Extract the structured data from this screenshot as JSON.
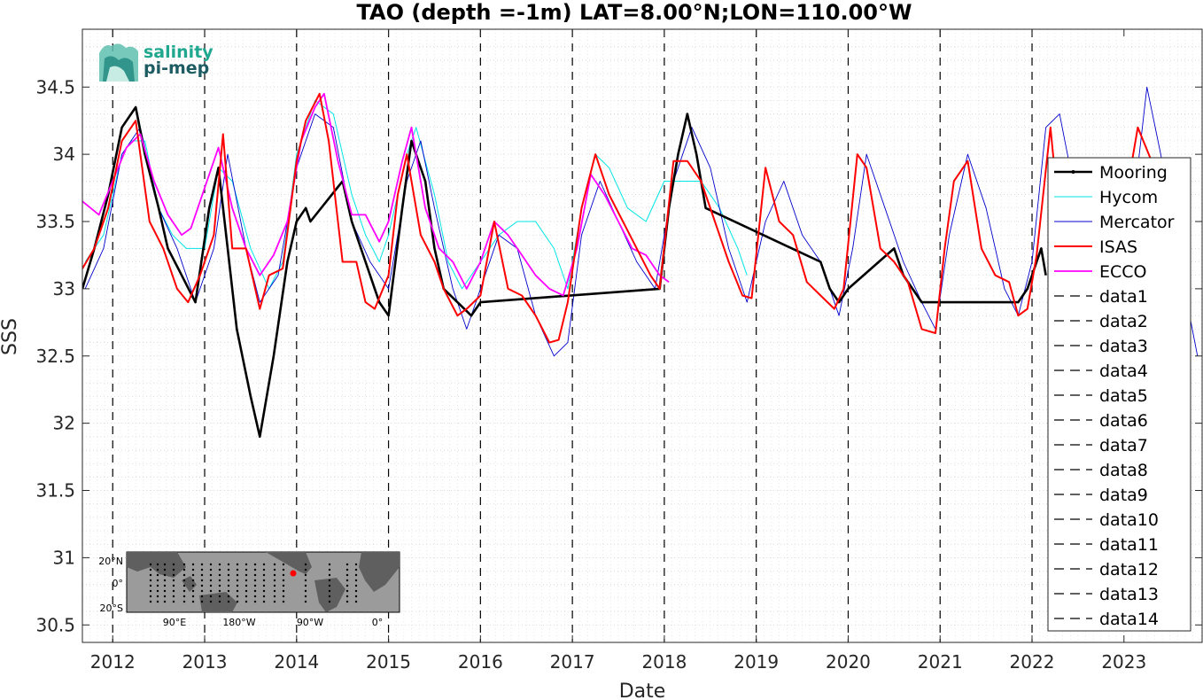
{
  "chart_data": {
    "type": "line",
    "title": "TAO (depth =-1m) LAT=8.00°N;LON=110.00°W",
    "xlabel": "Date",
    "ylabel": "SSS",
    "xlim": [
      2011.67,
      2023.85
    ],
    "ylim": [
      30.37,
      34.93
    ],
    "x_ticks": [
      2012,
      2013,
      2014,
      2015,
      2016,
      2017,
      2018,
      2019,
      2020,
      2021,
      2022,
      2023
    ],
    "x_tick_labels": [
      "2012",
      "2013",
      "2014",
      "2015",
      "2016",
      "2017",
      "2018",
      "2019",
      "2020",
      "2021",
      "2022",
      "2023"
    ],
    "y_ticks": [
      30.5,
      31,
      31.5,
      32,
      32.5,
      33,
      33.5,
      34,
      34.5
    ],
    "y_tick_labels": [
      "30.5",
      "31",
      "31.5",
      "32",
      "32.5",
      "33",
      "33.5",
      "34",
      "34.5"
    ],
    "grid": "on (dotted minor grid)",
    "legend_position": "right",
    "vertical_dashed_lines_x": [
      2012,
      2013,
      2014,
      2015,
      2016,
      2017,
      2018,
      2019,
      2020,
      2021,
      2022
    ],
    "series": [
      {
        "name": "Mooring",
        "color": "#000000",
        "x": [
          2011.67,
          2011.8,
          2011.95,
          2012.1,
          2012.25,
          2012.35,
          2012.5,
          2012.6,
          2012.75,
          2012.9,
          2013.05,
          2013.15,
          2013.25,
          2013.35,
          2013.5,
          2013.6,
          2013.75,
          2013.9,
          2014.0,
          2014.1,
          2014.15,
          2014.5,
          2014.6,
          2014.75,
          2014.9,
          2015.0,
          2015.15,
          2015.25,
          2015.4,
          2015.5,
          2015.6,
          2015.75,
          2015.9,
          2016.0,
          2017.95,
          2018.05,
          2018.15,
          2018.25,
          2018.35,
          2018.45,
          2019.7,
          2019.8,
          2019.9,
          2020.0,
          2020.5,
          2020.6,
          2020.7,
          2020.8,
          2021.85,
          2021.95,
          2022.0,
          2022.05,
          2022.1,
          2022.15
        ],
        "y": [
          33.0,
          33.3,
          33.7,
          34.2,
          34.35,
          34.0,
          33.6,
          33.3,
          33.1,
          32.9,
          33.6,
          33.9,
          33.3,
          32.7,
          32.2,
          31.9,
          32.5,
          33.2,
          33.5,
          33.6,
          33.5,
          33.8,
          33.5,
          33.2,
          32.9,
          32.8,
          33.6,
          34.1,
          33.8,
          33.3,
          33.0,
          32.9,
          32.8,
          32.9,
          33.0,
          33.6,
          34.0,
          34.3,
          34.0,
          33.6,
          33.2,
          33.0,
          32.9,
          33.0,
          33.3,
          33.1,
          33.0,
          32.9,
          32.9,
          33.0,
          33.1,
          33.2,
          33.3,
          33.1
        ]
      },
      {
        "name": "Hycom",
        "color": "#00e5e5",
        "x": [
          2011.7,
          2011.9,
          2012.1,
          2012.2,
          2012.35,
          2012.5,
          2012.65,
          2012.8,
          2013.0,
          2013.15,
          2013.3,
          2013.5,
          2013.7,
          2013.85,
          2014.0,
          2014.2,
          2014.4,
          2014.6,
          2014.75,
          2014.9,
          2015.0,
          2015.2,
          2015.3,
          2015.5,
          2015.65,
          2015.8,
          2016.0,
          2016.2,
          2016.4,
          2016.6,
          2016.8,
          2016.95,
          2017.1,
          2017.25,
          2017.4,
          2017.6,
          2017.8,
          2018.0,
          2018.2,
          2018.4,
          2018.6,
          2018.8,
          2018.9
        ],
        "y": [
          33.2,
          33.4,
          34.0,
          34.1,
          34.1,
          33.6,
          33.4,
          33.3,
          33.3,
          33.9,
          33.8,
          33.3,
          33.0,
          33.2,
          34.0,
          34.4,
          34.3,
          33.7,
          33.4,
          33.2,
          33.4,
          34.0,
          34.2,
          33.7,
          33.2,
          33.0,
          33.2,
          33.4,
          33.5,
          33.5,
          33.3,
          33.0,
          33.6,
          34.0,
          33.9,
          33.6,
          33.5,
          33.8,
          33.8,
          33.8,
          33.6,
          33.3,
          33.1
        ]
      },
      {
        "name": "Mercator",
        "color": "#0000cc",
        "x": [
          2011.7,
          2011.9,
          2012.1,
          2012.3,
          2012.5,
          2012.7,
          2012.9,
          2013.1,
          2013.25,
          2013.45,
          2013.6,
          2013.8,
          2014.0,
          2014.2,
          2014.4,
          2014.6,
          2014.8,
          2015.0,
          2015.2,
          2015.35,
          2015.5,
          2015.7,
          2015.85,
          2016.0,
          2016.2,
          2016.4,
          2016.6,
          2016.8,
          2016.95,
          2017.1,
          2017.3,
          2017.5,
          2017.7,
          2017.9,
          2018.1,
          2018.3,
          2018.5,
          2018.7,
          2018.9,
          2019.1,
          2019.3,
          2019.5,
          2019.7,
          2019.9,
          2020.05,
          2020.2,
          2020.4,
          2020.6,
          2020.8,
          2020.95,
          2021.1,
          2021.3,
          2021.5,
          2021.7,
          2021.85,
          2022.0,
          2022.15,
          2022.3,
          2022.5,
          2022.7,
          2022.9,
          2023.1,
          2023.25,
          2023.4,
          2023.6,
          2023.8
        ],
        "y": [
          33.0,
          33.3,
          34.0,
          34.2,
          33.6,
          33.3,
          32.9,
          33.3,
          34.0,
          33.3,
          32.9,
          33.1,
          33.9,
          34.3,
          34.2,
          33.5,
          33.2,
          33.0,
          33.8,
          34.1,
          33.6,
          33.0,
          32.7,
          33.0,
          33.4,
          33.3,
          32.8,
          32.5,
          32.6,
          33.4,
          33.8,
          33.5,
          33.2,
          33.0,
          33.8,
          34.2,
          33.9,
          33.3,
          32.9,
          33.5,
          33.8,
          33.4,
          33.2,
          32.8,
          33.3,
          34.0,
          33.6,
          33.2,
          32.9,
          32.7,
          33.4,
          34.0,
          33.6,
          33.0,
          32.8,
          33.2,
          34.2,
          34.3,
          33.6,
          33.0,
          32.7,
          33.6,
          34.5,
          34.0,
          33.2,
          32.5
        ]
      },
      {
        "name": "ISAS",
        "color": "#ff0000",
        "x": [
          2011.67,
          2011.8,
          2011.95,
          2012.1,
          2012.25,
          2012.4,
          2012.55,
          2012.7,
          2012.82,
          2012.95,
          2013.1,
          2013.2,
          2013.3,
          2013.45,
          2013.6,
          2013.7,
          2013.85,
          2014.0,
          2014.1,
          2014.25,
          2014.35,
          2014.5,
          2014.65,
          2014.75,
          2014.85,
          2015.0,
          2015.1,
          2015.2,
          2015.35,
          2015.5,
          2015.6,
          2015.75,
          2015.85,
          2016.0,
          2016.15,
          2016.3,
          2016.45,
          2016.6,
          2016.75,
          2016.85,
          2016.95,
          2017.1,
          2017.25,
          2017.4,
          2017.55,
          2017.7,
          2017.85,
          2017.95,
          2018.1,
          2018.25,
          2018.4,
          2018.55,
          2018.7,
          2018.85,
          2018.95,
          2019.1,
          2019.25,
          2019.4,
          2019.55,
          2019.7,
          2019.85,
          2019.95,
          2020.1,
          2020.2,
          2020.35,
          2020.5,
          2020.65,
          2020.8,
          2020.95,
          2021.05,
          2021.15,
          2021.3,
          2021.45,
          2021.6,
          2021.75,
          2021.85,
          2021.95,
          2022.05,
          2022.2,
          2022.3,
          2022.45,
          2022.6,
          2022.75,
          2022.9,
          2023.0,
          2023.15,
          2023.3,
          2023.45
        ],
        "y": [
          33.15,
          33.3,
          33.6,
          34.1,
          34.25,
          33.5,
          33.3,
          33.0,
          32.9,
          33.1,
          33.4,
          34.15,
          33.3,
          33.3,
          32.85,
          33.1,
          33.15,
          33.95,
          34.25,
          34.45,
          34.1,
          33.2,
          33.2,
          32.9,
          32.85,
          33.1,
          33.7,
          34.0,
          33.4,
          33.2,
          33.0,
          32.8,
          32.85,
          32.95,
          33.5,
          33.0,
          32.95,
          32.8,
          32.6,
          32.62,
          32.9,
          33.6,
          34.0,
          33.7,
          33.5,
          33.3,
          33.1,
          33.0,
          33.95,
          33.95,
          33.8,
          33.5,
          33.2,
          32.95,
          32.93,
          33.9,
          33.5,
          33.4,
          33.05,
          32.95,
          32.85,
          33.0,
          34.0,
          33.9,
          33.3,
          33.2,
          33.05,
          32.7,
          32.67,
          33.3,
          33.8,
          33.95,
          33.3,
          33.1,
          33.05,
          32.8,
          32.85,
          33.25,
          34.2,
          33.5,
          33.15,
          32.95,
          32.9,
          33.2,
          33.6,
          34.2,
          33.95,
          33.5
        ]
      },
      {
        "name": "ECCO",
        "color": "#ff00ff",
        "x": [
          2011.67,
          2011.85,
          2012.0,
          2012.15,
          2012.3,
          2012.45,
          2012.6,
          2012.75,
          2012.85,
          2013.0,
          2013.15,
          2013.3,
          2013.45,
          2013.6,
          2013.75,
          2013.9,
          2014.05,
          2014.2,
          2014.3,
          2014.45,
          2014.6,
          2014.75,
          2014.9,
          2015.0,
          2015.15,
          2015.25,
          2015.4,
          2015.55,
          2015.7,
          2015.85,
          2016.0,
          2016.15,
          2016.3,
          2016.45,
          2016.6,
          2016.75,
          2016.9,
          2017.05,
          2017.2,
          2017.35,
          2017.5,
          2017.65,
          2017.8,
          2017.95,
          2018.05
        ],
        "y": [
          33.65,
          33.55,
          33.8,
          34.05,
          34.15,
          33.8,
          33.55,
          33.4,
          33.45,
          33.75,
          34.05,
          33.6,
          33.3,
          33.1,
          33.25,
          33.5,
          34.1,
          34.35,
          34.45,
          33.95,
          33.55,
          33.55,
          33.35,
          33.5,
          33.95,
          34.2,
          33.6,
          33.3,
          33.2,
          33.0,
          33.2,
          33.5,
          33.4,
          33.25,
          33.1,
          33.0,
          32.95,
          33.3,
          33.85,
          33.7,
          33.5,
          33.3,
          33.25,
          33.1,
          33.05
        ]
      },
      {
        "name": "data1",
        "color": "#000000",
        "style": "dashed",
        "x": [
          2012,
          2012
        ],
        "y": [
          30.37,
          34.93
        ]
      },
      {
        "name": "data2",
        "color": "#000000",
        "style": "dashed",
        "x": [
          2013,
          2013
        ],
        "y": [
          30.37,
          34.93
        ]
      },
      {
        "name": "data3",
        "color": "#000000",
        "style": "dashed",
        "x": [
          2014,
          2014
        ],
        "y": [
          30.37,
          34.93
        ]
      },
      {
        "name": "data4",
        "color": "#000000",
        "style": "dashed",
        "x": [
          2015,
          2015
        ],
        "y": [
          30.37,
          34.93
        ]
      },
      {
        "name": "data5",
        "color": "#000000",
        "style": "dashed",
        "x": [
          2016,
          2016
        ],
        "y": [
          30.37,
          34.93
        ]
      },
      {
        "name": "data6",
        "color": "#000000",
        "style": "dashed",
        "x": [
          2017,
          2017
        ],
        "y": [
          30.37,
          34.93
        ]
      },
      {
        "name": "data7",
        "color": "#000000",
        "style": "dashed",
        "x": [
          2018,
          2018
        ],
        "y": [
          30.37,
          34.93
        ]
      },
      {
        "name": "data8",
        "color": "#000000",
        "style": "dashed",
        "x": [
          2019,
          2019
        ],
        "y": [
          30.37,
          34.93
        ]
      },
      {
        "name": "data9",
        "color": "#000000",
        "style": "dashed",
        "x": [
          2020,
          2020
        ],
        "y": [
          30.37,
          34.93
        ]
      },
      {
        "name": "data10",
        "color": "#000000",
        "style": "dashed",
        "x": [
          2021,
          2021
        ],
        "y": [
          30.37,
          34.93
        ]
      },
      {
        "name": "data11",
        "color": "#000000",
        "style": "dashed",
        "x": [
          2022,
          2022
        ],
        "y": [
          30.37,
          34.93
        ]
      },
      {
        "name": "data12",
        "color": "#000000",
        "style": "dashed"
      },
      {
        "name": "data13",
        "color": "#000000",
        "style": "dashed"
      },
      {
        "name": "data14",
        "color": "#000000",
        "style": "dashed"
      }
    ]
  },
  "logo": {
    "line1": "salinity",
    "line2": "pi-mep",
    "color1": "#1fa88f",
    "color2": "#1d5c63"
  },
  "inset_map": {
    "y_labels": [
      "20°N",
      "0°",
      "20°S"
    ],
    "x_labels": [
      "90°E",
      "180°W",
      "90°W",
      "0°"
    ],
    "marker_color": "#ff0000"
  }
}
